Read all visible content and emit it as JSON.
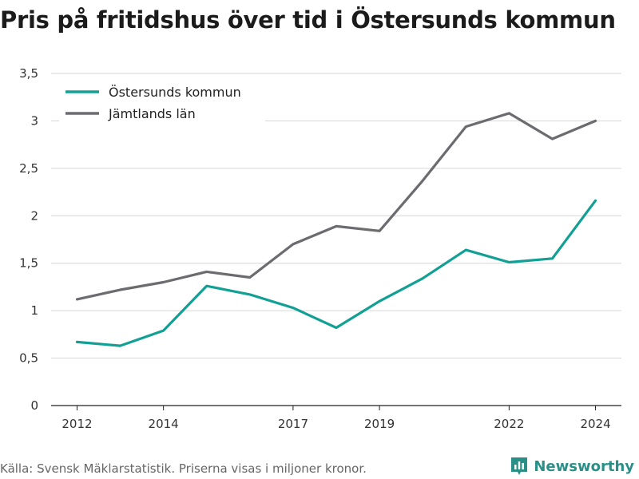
{
  "header": {
    "title": "Pris på fritidshus över tid i Östersunds kommun"
  },
  "footer": {
    "source": "Källa: Svensk Mäklarstatistik. Priserna visas i miljoner kronor."
  },
  "brand": {
    "name": "Newsworthy",
    "icon": "bar-chart-logo-icon",
    "color": "#2a8f86"
  },
  "chart_data": {
    "type": "line",
    "title": "Pris på fritidshus över tid i Östersunds kommun",
    "x": [
      2012,
      2013,
      2014,
      2015,
      2016,
      2017,
      2018,
      2019,
      2020,
      2021,
      2022,
      2023,
      2024
    ],
    "x_ticks": [
      2012,
      2014,
      2017,
      2019,
      2022,
      2024
    ],
    "x_tick_labels": [
      "2012",
      "2014",
      "2017",
      "2019",
      "2022",
      "2024"
    ],
    "y_ticks": [
      0,
      0.5,
      1,
      1.5,
      2,
      2.5,
      3,
      3.5
    ],
    "y_tick_labels": [
      "0",
      "0,5",
      "1",
      "1,5",
      "2",
      "2,5",
      "3",
      "3,5"
    ],
    "ylim": [
      0,
      3.5
    ],
    "xlim": [
      2011.4,
      2024.6
    ],
    "grid": true,
    "legend_position": "top-left",
    "series": [
      {
        "name": "Östersunds kommun",
        "color": "#12a094",
        "values": [
          0.67,
          0.63,
          0.79,
          1.26,
          1.17,
          1.03,
          0.82,
          1.1,
          1.34,
          1.64,
          1.51,
          1.55,
          2.16
        ]
      },
      {
        "name": "Jämtlands län",
        "color": "#6b6b70",
        "values": [
          1.12,
          1.22,
          1.3,
          1.41,
          1.35,
          1.7,
          1.89,
          1.84,
          2.37,
          2.94,
          3.08,
          2.81,
          3.0
        ]
      }
    ]
  }
}
